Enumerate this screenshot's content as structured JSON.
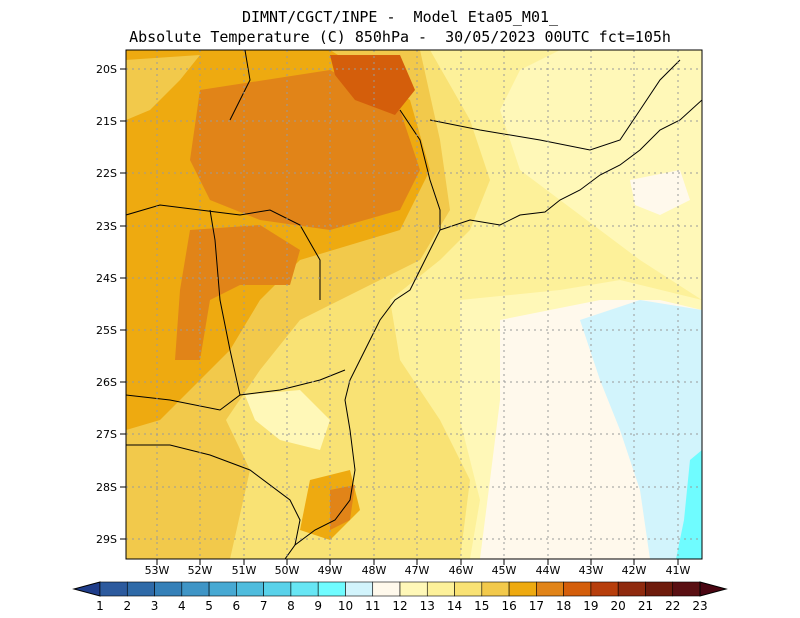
{
  "title": {
    "line1": "DIMNT/CGCT/INPE -  Model Eta05_M01_",
    "line2": "Absolute Temperature (C) 850hPa -  30/05/2023 00UTC fct=105h"
  },
  "axes": {
    "lat_labels": [
      "20S",
      "21S",
      "22S",
      "23S",
      "24S",
      "25S",
      "26S",
      "27S",
      "28S",
      "29S"
    ],
    "lon_labels": [
      "53W",
      "52W",
      "51W",
      "50W",
      "49W",
      "48W",
      "47W",
      "46W",
      "45W",
      "44W",
      "43W",
      "42W",
      "41W"
    ]
  },
  "colorbar": {
    "labels": [
      "1",
      "2",
      "3",
      "4",
      "5",
      "6",
      "7",
      "8",
      "9",
      "10",
      "11",
      "12",
      "13",
      "14",
      "15",
      "16",
      "17",
      "18",
      "19",
      "20",
      "21",
      "22",
      "23"
    ],
    "colors": [
      "#1f3d8a",
      "#2c5a9e",
      "#2f6aa8",
      "#3580b8",
      "#3f95c6",
      "#47a9d3",
      "#4fbcdd",
      "#59d2ea",
      "#67e6f4",
      "#6ffcff",
      "#d2f4fc",
      "#fff9ec",
      "#fff8b8",
      "#fdf19a",
      "#f9e274",
      "#f2c94b",
      "#eeaa10",
      "#e18418",
      "#d45e0b",
      "#b73e0c",
      "#8f2a0e",
      "#6e1b0c",
      "#5a0f12",
      "#4a0612"
    ]
  }
}
